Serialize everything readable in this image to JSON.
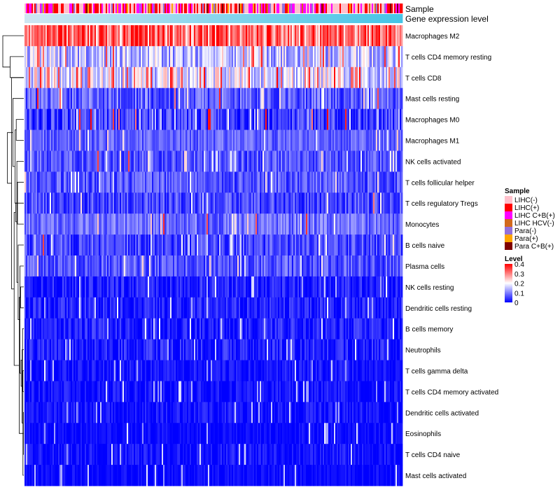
{
  "chart_data": {
    "type": "heatmap",
    "title": "",
    "annotation_tracks": [
      "Sample",
      "Gene expression level"
    ],
    "rows": [
      {
        "label": "Macrophages M2",
        "mean": 0.3,
        "spread": 0.1,
        "hot_prob": 0.3
      },
      {
        "label": "T cells CD4 memory resting",
        "mean": 0.14,
        "spread": 0.08,
        "hot_prob": 0.06
      },
      {
        "label": "T cells CD8",
        "mean": 0.17,
        "spread": 0.09,
        "hot_prob": 0.1
      },
      {
        "label": "Mast cells resting",
        "mean": 0.07,
        "spread": 0.06,
        "hot_prob": 0.02
      },
      {
        "label": "Macrophages M0",
        "mean": 0.04,
        "spread": 0.06,
        "hot_prob": 0.04
      },
      {
        "label": "Macrophages M1",
        "mean": 0.07,
        "spread": 0.04,
        "hot_prob": 0.0
      },
      {
        "label": "NK cells activated",
        "mean": 0.06,
        "spread": 0.05,
        "hot_prob": 0.01
      },
      {
        "label": "T cells follicular helper",
        "mean": 0.06,
        "spread": 0.05,
        "hot_prob": 0.0
      },
      {
        "label": "T cells regulatory  Tregs",
        "mean": 0.05,
        "spread": 0.05,
        "hot_prob": 0.01
      },
      {
        "label": "Monocytes",
        "mean": 0.08,
        "spread": 0.05,
        "hot_prob": 0.02
      },
      {
        "label": "B cells naive",
        "mean": 0.05,
        "spread": 0.05,
        "hot_prob": 0.01
      },
      {
        "label": "Plasma cells",
        "mean": 0.06,
        "spread": 0.05,
        "hot_prob": 0.01
      },
      {
        "label": "NK cells resting",
        "mean": 0.02,
        "spread": 0.04,
        "hot_prob": 0.0
      },
      {
        "label": "Dendritic cells resting",
        "mean": 0.02,
        "spread": 0.04,
        "hot_prob": 0.0
      },
      {
        "label": "B cells memory",
        "mean": 0.02,
        "spread": 0.04,
        "hot_prob": 0.0
      },
      {
        "label": "Neutrophils",
        "mean": 0.02,
        "spread": 0.04,
        "hot_prob": 0.0
      },
      {
        "label": "T cells gamma delta",
        "mean": 0.01,
        "spread": 0.03,
        "hot_prob": 0.0
      },
      {
        "label": "T cells CD4 memory activated",
        "mean": 0.01,
        "spread": 0.03,
        "hot_prob": 0.0
      },
      {
        "label": "Dendritic cells activated",
        "mean": 0.01,
        "spread": 0.03,
        "hot_prob": 0.0
      },
      {
        "label": "Eosinophils",
        "mean": 0.005,
        "spread": 0.02,
        "hot_prob": 0.0
      },
      {
        "label": "T cells CD4 naive",
        "mean": 0.01,
        "spread": 0.03,
        "hot_prob": 0.0
      },
      {
        "label": "Mast cells activated",
        "mean": 0.005,
        "spread": 0.02,
        "hot_prob": 0.0
      }
    ],
    "columns_count": 270,
    "sample_legend": {
      "title": "Sample",
      "entries": [
        {
          "label": "LIHC(-)",
          "color": "#ffc0cb",
          "weight": 0.34
        },
        {
          "label": "LIHC(+)",
          "color": "#ff0000",
          "weight": 0.24
        },
        {
          "label": "LIHC C+B(+)",
          "color": "#ff00ff",
          "weight": 0.24
        },
        {
          "label": "LIHC HCV(-)",
          "color": "#d2691e",
          "weight": 0.04
        },
        {
          "label": "Para(-)",
          "color": "#9370db",
          "weight": 0.08
        },
        {
          "label": "Para(+)",
          "color": "#ffa500",
          "weight": 0.03
        },
        {
          "label": "Para C+B(+)",
          "color": "#800000",
          "weight": 0.03
        }
      ]
    },
    "level_legend": {
      "title": "Level",
      "ticks": [
        "0.4",
        "0.3",
        "0.2",
        "0.1",
        "0"
      ],
      "range": [
        0,
        0.4
      ],
      "colors": {
        "low": "#0000ff",
        "mid": "#ffffff",
        "high": "#ff0000"
      }
    },
    "expression_track": {
      "start_color": "#cfe6f2",
      "end_color": "#45c4e6"
    },
    "dendrogram_merges": [
      [
        19,
        21,
        0.02
      ],
      [
        17,
        22,
        0.04
      ],
      [
        15,
        18,
        0.06
      ],
      [
        16,
        24,
        0.08
      ],
      [
        20,
        23,
        0.1
      ],
      [
        25,
        26,
        0.13
      ],
      [
        13,
        14,
        0.15
      ],
      [
        12,
        28,
        0.18
      ],
      [
        27,
        29,
        0.22
      ],
      [
        11,
        30,
        0.27
      ],
      [
        8,
        10,
        0.3
      ],
      [
        7,
        32,
        0.33
      ],
      [
        5,
        6,
        0.36
      ],
      [
        33,
        34,
        0.39
      ],
      [
        9,
        35,
        0.42
      ],
      [
        31,
        36,
        0.46
      ],
      [
        4,
        37,
        0.52
      ],
      [
        3,
        38,
        0.58
      ],
      [
        2,
        3,
        0.65
      ],
      [
        39,
        40,
        0.78
      ],
      [
        1,
        41,
        1.0
      ]
    ]
  }
}
